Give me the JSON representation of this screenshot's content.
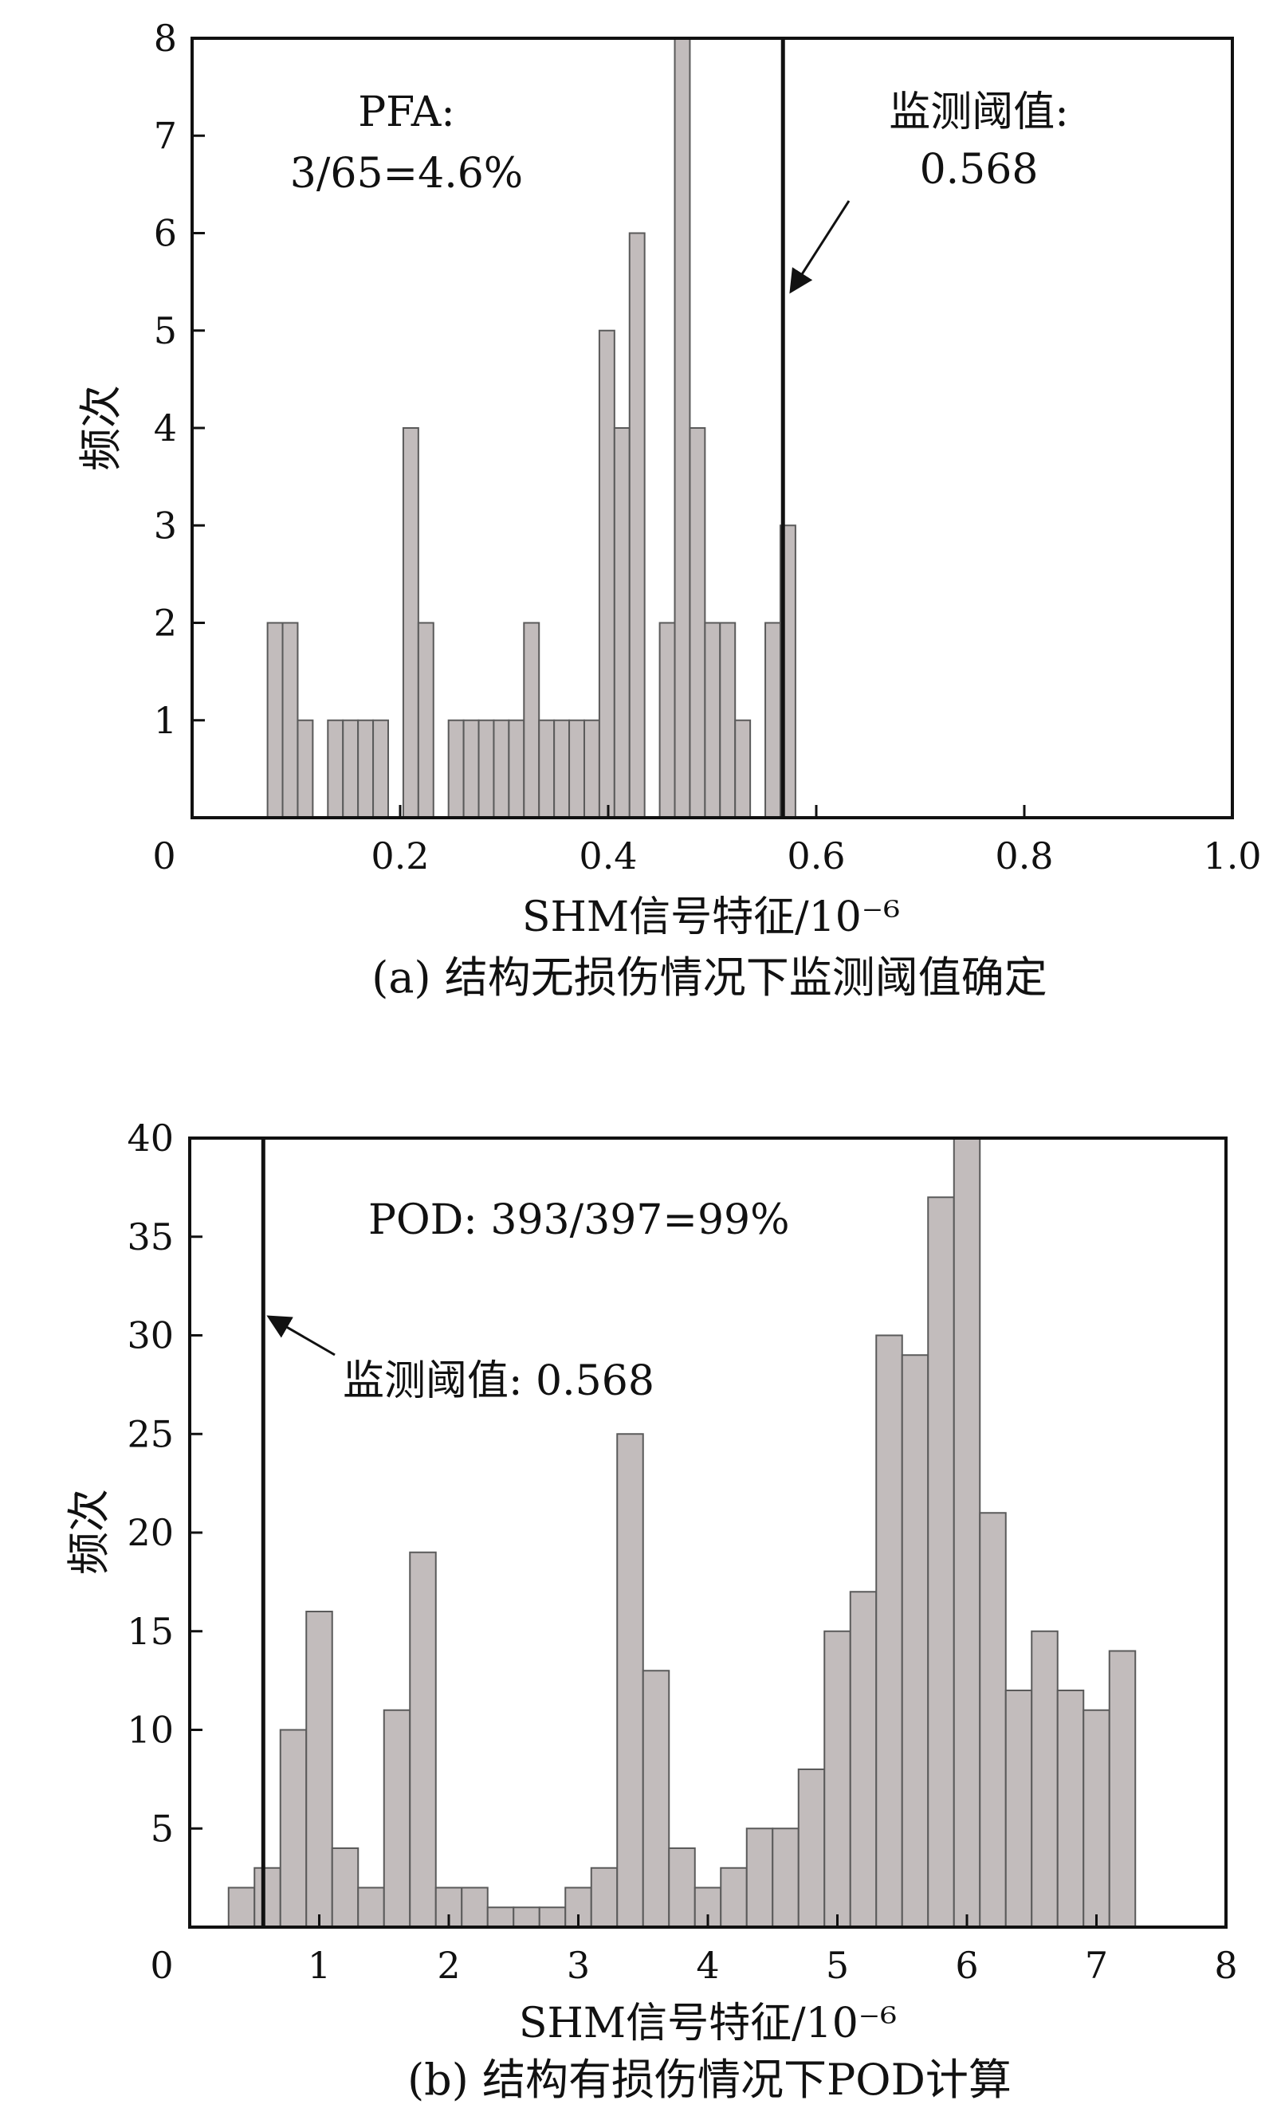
{
  "chart_data": [
    {
      "type": "bar",
      "caption": "(a) 结构无损伤情况下监测阈值确定",
      "xlabel": "SHM信号特征/10⁻⁶",
      "ylabel": "频次",
      "xlim": [
        0,
        1.0
      ],
      "ylim": [
        0,
        8
      ],
      "xticks": [
        0,
        0.2,
        0.4,
        0.6,
        0.8,
        1.0
      ],
      "xtick_labels": [
        "0",
        "0.2",
        "0.4",
        "0.6",
        "0.8",
        "1.0"
      ],
      "yticks": [
        1,
        2,
        3,
        4,
        5,
        6,
        7,
        8
      ],
      "ytick_labels": [
        "1",
        "2",
        "3",
        "4",
        "5",
        "6",
        "7",
        "8"
      ],
      "bin_width": 0.0145,
      "bars": [
        {
          "x": 0.0725,
          "y": 2
        },
        {
          "x": 0.087,
          "y": 2
        },
        {
          "x": 0.1015,
          "y": 1
        },
        {
          "x": 0.1305,
          "y": 1
        },
        {
          "x": 0.145,
          "y": 1
        },
        {
          "x": 0.1595,
          "y": 1
        },
        {
          "x": 0.174,
          "y": 1
        },
        {
          "x": 0.203,
          "y": 4
        },
        {
          "x": 0.2175,
          "y": 2
        },
        {
          "x": 0.2465,
          "y": 1
        },
        {
          "x": 0.261,
          "y": 1
        },
        {
          "x": 0.2755,
          "y": 1
        },
        {
          "x": 0.29,
          "y": 1
        },
        {
          "x": 0.3045,
          "y": 1
        },
        {
          "x": 0.319,
          "y": 2
        },
        {
          "x": 0.3335,
          "y": 1
        },
        {
          "x": 0.348,
          "y": 1
        },
        {
          "x": 0.3625,
          "y": 1
        },
        {
          "x": 0.377,
          "y": 1
        },
        {
          "x": 0.3915,
          "y": 5
        },
        {
          "x": 0.406,
          "y": 4
        },
        {
          "x": 0.4205,
          "y": 6
        },
        {
          "x": 0.4495,
          "y": 2
        },
        {
          "x": 0.464,
          "y": 8
        },
        {
          "x": 0.4785,
          "y": 4
        },
        {
          "x": 0.493,
          "y": 2
        },
        {
          "x": 0.5075,
          "y": 2
        },
        {
          "x": 0.522,
          "y": 1
        },
        {
          "x": 0.551,
          "y": 2
        },
        {
          "x": 0.5655,
          "y": 3
        }
      ],
      "threshold": 0.568,
      "annotations": [
        {
          "id": "pfa",
          "lines": [
            "PFA:",
            "3/65=4.6%"
          ]
        },
        {
          "id": "threshold",
          "lines": [
            "监测阈值:",
            "0.568"
          ]
        }
      ],
      "bar_color": "#c2bcbc",
      "bar_edge_color": "#5a5a5a"
    },
    {
      "type": "bar",
      "caption": "(b) 结构有损伤情况下POD计算",
      "xlabel": "SHM信号特征/10⁻⁶",
      "ylabel": "频次",
      "xlim": [
        0,
        8
      ],
      "ylim": [
        0,
        40
      ],
      "xticks": [
        0,
        1,
        2,
        3,
        4,
        5,
        6,
        7,
        8
      ],
      "xtick_labels": [
        "0",
        "1",
        "2",
        "3",
        "4",
        "5",
        "6",
        "7",
        "8"
      ],
      "yticks": [
        5,
        10,
        15,
        20,
        25,
        30,
        35,
        40
      ],
      "ytick_labels": [
        "5",
        "10",
        "15",
        "20",
        "25",
        "30",
        "35",
        "40"
      ],
      "bin_width": 0.2,
      "bars": [
        {
          "x": 0.3,
          "y": 2
        },
        {
          "x": 0.5,
          "y": 3
        },
        {
          "x": 0.7,
          "y": 10
        },
        {
          "x": 0.9,
          "y": 16
        },
        {
          "x": 1.1,
          "y": 4
        },
        {
          "x": 1.3,
          "y": 2
        },
        {
          "x": 1.5,
          "y": 11
        },
        {
          "x": 1.7,
          "y": 19
        },
        {
          "x": 1.9,
          "y": 2
        },
        {
          "x": 2.1,
          "y": 2
        },
        {
          "x": 2.3,
          "y": 1
        },
        {
          "x": 2.5,
          "y": 1
        },
        {
          "x": 2.7,
          "y": 1
        },
        {
          "x": 2.9,
          "y": 2
        },
        {
          "x": 3.1,
          "y": 3
        },
        {
          "x": 3.3,
          "y": 25
        },
        {
          "x": 3.5,
          "y": 13
        },
        {
          "x": 3.7,
          "y": 4
        },
        {
          "x": 3.9,
          "y": 2
        },
        {
          "x": 4.1,
          "y": 3
        },
        {
          "x": 4.3,
          "y": 5
        },
        {
          "x": 4.5,
          "y": 5
        },
        {
          "x": 4.7,
          "y": 8
        },
        {
          "x": 4.9,
          "y": 15
        },
        {
          "x": 5.1,
          "y": 17
        },
        {
          "x": 5.3,
          "y": 30
        },
        {
          "x": 5.5,
          "y": 29
        },
        {
          "x": 5.7,
          "y": 37
        },
        {
          "x": 5.9,
          "y": 40
        },
        {
          "x": 6.1,
          "y": 21
        },
        {
          "x": 6.3,
          "y": 12
        },
        {
          "x": 6.5,
          "y": 15
        },
        {
          "x": 6.7,
          "y": 12
        },
        {
          "x": 6.9,
          "y": 11
        },
        {
          "x": 7.1,
          "y": 14
        }
      ],
      "threshold": 0.568,
      "annotations": [
        {
          "id": "pod",
          "lines": [
            "POD: 393/397=99%"
          ]
        },
        {
          "id": "threshold",
          "lines": [
            "监测阈值: 0.568"
          ]
        }
      ],
      "bar_color": "#c2bcbc",
      "bar_edge_color": "#5a5a5a"
    }
  ]
}
